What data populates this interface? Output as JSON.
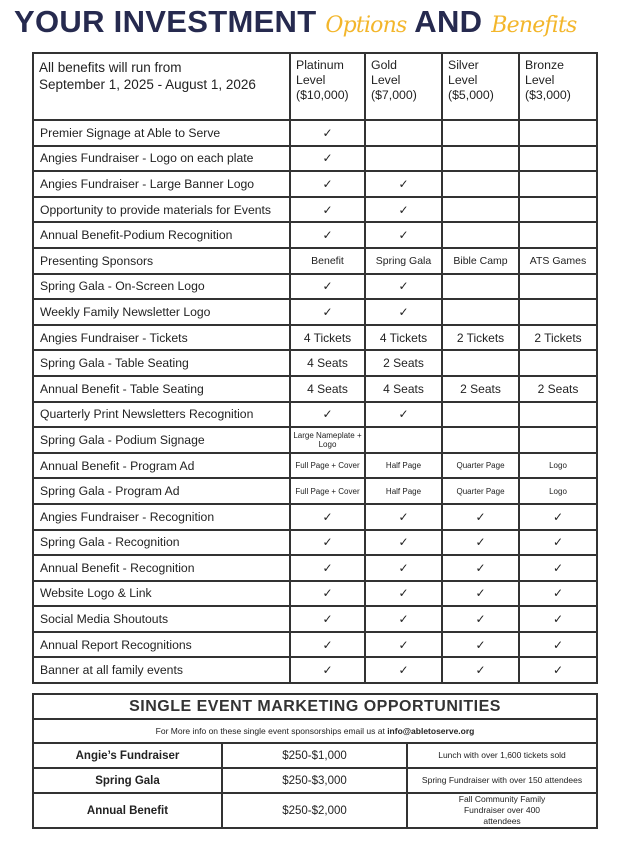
{
  "title": {
    "part1": "YOUR INVESTMENT",
    "script1": "Options",
    "part2": "AND",
    "script2": "Benefits"
  },
  "colors": {
    "navy": "#262a4f",
    "gold": "#f3b62b"
  },
  "header": {
    "intro_line1": "All benefits will run from",
    "intro_line2": "September 1, 2025 - August 1, 2026",
    "levels": [
      {
        "name": "Platinum",
        "sub": "Level",
        "price": "($10,000)"
      },
      {
        "name": "Gold",
        "sub": "Level",
        "price": "($7,000)"
      },
      {
        "name": "Silver",
        "sub": "Level",
        "price": "($5,000)"
      },
      {
        "name": "Bronze",
        "sub": "Level",
        "price": "($3,000)"
      }
    ]
  },
  "rows": [
    {
      "label": "Premier Signage at Able to Serve",
      "cells": [
        "✓",
        "",
        "",
        ""
      ]
    },
    {
      "label": "Angies Fundraiser - Logo on each plate",
      "cells": [
        "✓",
        "",
        "",
        ""
      ]
    },
    {
      "label": "Angies Fundraiser - Large Banner Logo",
      "cells": [
        "✓",
        "✓",
        "",
        ""
      ]
    },
    {
      "label": "Opportunity to provide materials for Events",
      "cells": [
        "✓",
        "✓",
        "",
        ""
      ]
    },
    {
      "label": "Annual Benefit-Podium Recognition",
      "cells": [
        "✓",
        "✓",
        "",
        ""
      ]
    },
    {
      "label": "Presenting Sponsors",
      "cells": [
        "Benefit",
        "Spring Gala",
        "Bible Camp",
        "ATS Games"
      ]
    },
    {
      "label": "Spring Gala - On-Screen Logo",
      "cells": [
        "✓",
        "✓",
        "",
        ""
      ]
    },
    {
      "label": "Weekly Family Newsletter Logo",
      "cells": [
        "✓",
        "✓",
        "",
        ""
      ]
    },
    {
      "label": "Angies Fundraiser - Tickets",
      "cells": [
        "4 Tickets",
        "4 Tickets",
        "2 Tickets",
        "2 Tickets"
      ]
    },
    {
      "label": "Spring Gala - Table Seating",
      "cells": [
        "4 Seats",
        "2 Seats",
        "",
        ""
      ]
    },
    {
      "label": "Annual Benefit - Table Seating",
      "cells": [
        "4 Seats",
        "4 Seats",
        "2 Seats",
        "2 Seats"
      ]
    },
    {
      "label": "Quarterly Print Newsletters Recognition",
      "cells": [
        "✓",
        "✓",
        "",
        ""
      ]
    },
    {
      "label": "Spring Gala - Podium Signage",
      "cells": [
        "Large Nameplate + Logo",
        "",
        "",
        ""
      ]
    },
    {
      "label": "Annual Benefit - Program Ad",
      "cells": [
        "Full Page + Cover",
        "Half Page",
        "Quarter Page",
        "Logo"
      ]
    },
    {
      "label": "Spring Gala - Program Ad",
      "cells": [
        "Full Page + Cover",
        "Half Page",
        "Quarter Page",
        "Logo"
      ]
    },
    {
      "label": "Angies Fundraiser - Recognition",
      "cells": [
        "✓",
        "✓",
        "✓",
        "✓"
      ]
    },
    {
      "label": "Spring Gala - Recognition",
      "cells": [
        "✓",
        "✓",
        "✓",
        "✓"
      ]
    },
    {
      "label": "Annual Benefit - Recognition",
      "cells": [
        "✓",
        "✓",
        "✓",
        "✓"
      ]
    },
    {
      "label": "Website Logo & Link",
      "cells": [
        "✓",
        "✓",
        "✓",
        "✓"
      ]
    },
    {
      "label": "Social Media Shoutouts",
      "cells": [
        "✓",
        "✓",
        "✓",
        "✓"
      ]
    },
    {
      "label": "Annual Report Recognitions",
      "cells": [
        "✓",
        "✓",
        "✓",
        "✓"
      ]
    },
    {
      "label": "Banner at all family events",
      "cells": [
        "✓",
        "✓",
        "✓",
        "✓"
      ]
    }
  ],
  "events": {
    "title": "SINGLE EVENT MARKETING OPPORTUNITIES",
    "info_prefix": "For More info on these single event sponsorships email us at ",
    "email": "info@abletoserve.org",
    "items": [
      {
        "name": "Angie’s Fundraiser",
        "price": "$250-$1,000",
        "desc": "Lunch with over 1,600 tickets sold"
      },
      {
        "name": "Spring Gala",
        "price": "$250-$3,000",
        "desc": "Spring Fundraiser with over 150 attendees"
      },
      {
        "name": "Annual Benefit",
        "price": "$250-$2,000",
        "desc": "Fall Community Family Fundraiser over 400 attendees"
      }
    ]
  }
}
